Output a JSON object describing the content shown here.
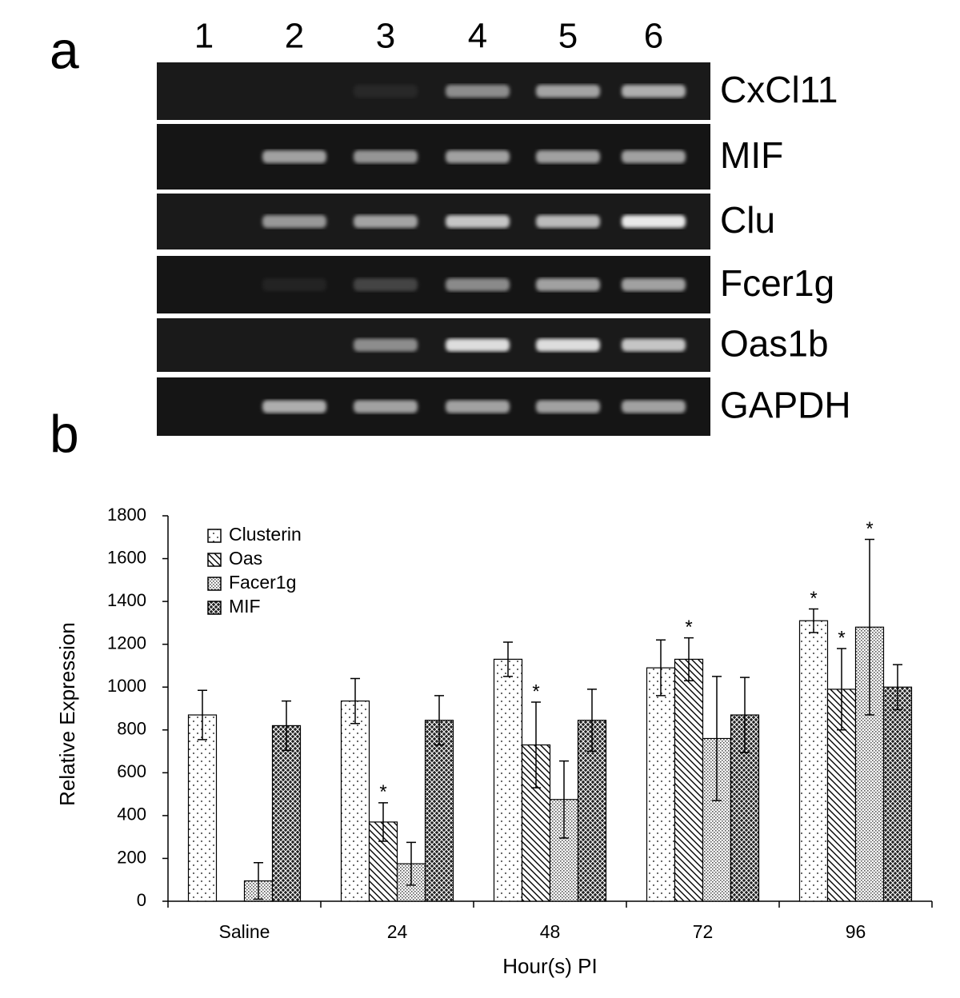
{
  "panel_labels": [
    "a",
    "b"
  ],
  "gel": {
    "lanes": [
      "1",
      "2",
      "3",
      "4",
      "5",
      "6"
    ],
    "genes": [
      "CxCl11",
      "MIF",
      "Clu",
      "Fcer1g",
      "Oas1b",
      "GAPDH"
    ]
  },
  "chart_data": {
    "type": "bar",
    "x_label": "Hour(s) PI",
    "y_label": "Relative Expression",
    "categories": [
      "Saline",
      "24",
      "48",
      "72",
      "96"
    ],
    "series": [
      {
        "name": "Clusterin",
        "color": "#000000",
        "pattern": "dots",
        "values": [
          870,
          935,
          1130,
          1090,
          1310
        ],
        "errors": [
          115,
          105,
          80,
          130,
          55
        ],
        "significance": [
          null,
          null,
          null,
          null,
          "*"
        ]
      },
      {
        "name": "Oas",
        "color": "#000000",
        "pattern": "diagonal",
        "values": [
          null,
          370,
          730,
          1130,
          990
        ],
        "errors": [
          null,
          90,
          200,
          100,
          190
        ],
        "significance": [
          null,
          "*",
          "*",
          "*",
          "*"
        ]
      },
      {
        "name": "Facer1g",
        "color": "#000000",
        "pattern": "fine-dots",
        "values": [
          95,
          175,
          475,
          760,
          1280
        ],
        "errors": [
          85,
          100,
          180,
          290,
          410
        ],
        "significance": [
          null,
          null,
          null,
          null,
          "*"
        ]
      },
      {
        "name": "MIF",
        "color": "#000000",
        "pattern": "crosshatch",
        "values": [
          820,
          845,
          845,
          870,
          1000
        ],
        "errors": [
          115,
          115,
          145,
          175,
          105
        ],
        "significance": [
          null,
          null,
          null,
          null,
          null
        ]
      }
    ],
    "ylim": [
      0,
      1800
    ],
    "yticks": [
      0,
      200,
      400,
      600,
      800,
      1000,
      1200,
      1400,
      1600,
      1800
    ],
    "legend": "top-left",
    "grid": false
  }
}
